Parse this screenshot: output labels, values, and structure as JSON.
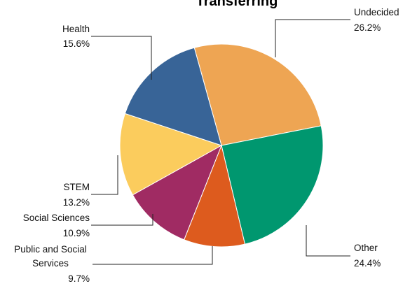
{
  "chart_data": {
    "type": "pie",
    "title": "Transferring",
    "categories": [
      "Undecided",
      "Other",
      "Public and Social Services",
      "Social Sciences",
      "STEM",
      "Health"
    ],
    "values": [
      26.2,
      24.4,
      9.7,
      10.9,
      13.2,
      15.6
    ],
    "value_labels": [
      "26.2%",
      "24.4%",
      "9.7%",
      "10.9%",
      "13.2%",
      "15.6%"
    ],
    "colors": [
      "#eea553",
      "#00976f",
      "#dd5b1e",
      "#a02b63",
      "#fbcc5d",
      "#386497"
    ]
  }
}
